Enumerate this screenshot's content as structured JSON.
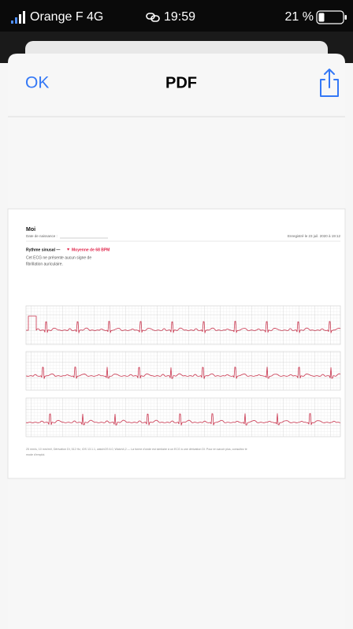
{
  "status_bar": {
    "carrier": "Orange F 4G",
    "time": "19:59",
    "battery": "21 %"
  },
  "toolbar": {
    "done": "OK",
    "title": "PDF"
  },
  "document": {
    "name": "Moi",
    "birth_date_label": "Date de naissance :",
    "recorded": "Enregistré le 23 juil. 2020 à 19:12",
    "rhythm": "Rythme sinusal —",
    "heart": "♥",
    "average": "Moyenne de 68 BPM",
    "description": [
      "Cet ECG ne présente aucun signe de",
      "fibrillation auriculaire."
    ],
    "footer": [
      "25 mm/s, 10 mm/mV, Dérivation DI, 512 Hz, iOS 13.1.1, watchOS 6.0, Watch4,2 — La forme d'onde est similaire à un ECG à une dérivation DI. Pour en savoir plus, consultez le",
      "mode d'emploi."
    ]
  }
}
